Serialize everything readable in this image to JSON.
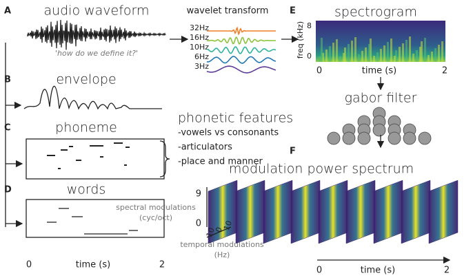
{
  "panels": {
    "a": {
      "letter": "A",
      "title": "audio waveform",
      "caption": "'how do we define it?'"
    },
    "wavelet": {
      "title": "wavelet transform",
      "bands": [
        "32Hz",
        "16Hz",
        "10Hz",
        "6Hz",
        "3Hz"
      ]
    },
    "e": {
      "letter": "E",
      "title": "spectrogram",
      "y_label": "freq (kHz)",
      "y_ticks": [
        "8",
        "0"
      ],
      "x_ticks": [
        "0",
        "2"
      ],
      "x_label": "time (s)"
    },
    "gabor": {
      "title": "gabor filter"
    },
    "b": {
      "letter": "B",
      "title": "envelope"
    },
    "c": {
      "letter": "C",
      "title": "phoneme"
    },
    "features": {
      "title": "phonetic features",
      "items": [
        "-vowels vs consonants",
        "-articulators",
        "-place and manner"
      ]
    },
    "d": {
      "letter": "D",
      "title": "words"
    },
    "left_axis": {
      "x_ticks": [
        "0",
        "2"
      ],
      "x_label": "time (s)"
    },
    "f": {
      "letter": "F",
      "title": "modulation power spectrum",
      "spectral_label": [
        "spectral modulations",
        "(cyc/oct)"
      ],
      "spectral_ticks": [
        "9",
        "0"
      ],
      "temporal_ticks": [
        "-10",
        "0",
        "10"
      ],
      "temporal_label": [
        "temporal modulations",
        "(Hz)"
      ],
      "x_ticks": [
        "0",
        "2"
      ],
      "x_label": "time (s)"
    }
  }
}
